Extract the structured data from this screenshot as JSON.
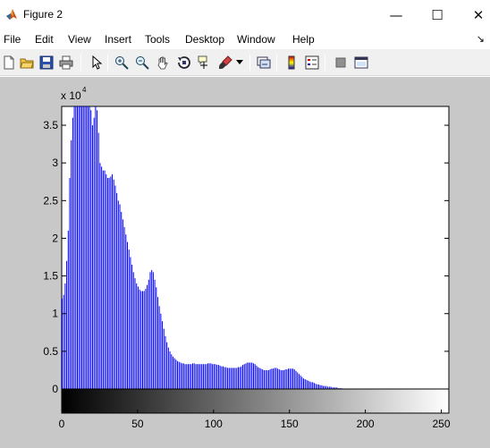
{
  "window": {
    "title": "Figure 2",
    "minimize_glyph": "—",
    "maximize_glyph": "☐",
    "close_glyph": "✕"
  },
  "menu": {
    "items": [
      "File",
      "Edit",
      "View",
      "Insert",
      "Tools",
      "Desktop",
      "Window",
      "Help"
    ],
    "overflow_glyph": "↘"
  },
  "toolbar": {
    "icons": [
      "new-figure-icon",
      "open-file-icon",
      "save-icon",
      "print-icon",
      "edit-plot-pointer-icon",
      "zoom-in-icon",
      "zoom-out-icon",
      "pan-hand-icon",
      "rotate-3d-icon",
      "data-cursor-icon",
      "brush-icon",
      "brush-dropdown-icon",
      "link-plot-icon",
      "insert-colorbar-icon",
      "insert-legend-icon",
      "hide-plot-tools-icon",
      "show-plot-tools-icon"
    ]
  },
  "colors": {
    "bar": "#0000ff",
    "figure_bg": "#c8c8c8",
    "axes_bg": "#ffffff"
  },
  "chart_data": {
    "type": "bar",
    "title": "",
    "xlabel": "",
    "ylabel": "",
    "exponent_label": "x 10",
    "exponent_power": "4",
    "xlim": [
      0,
      255
    ],
    "ylim": [
      0,
      3.75
    ],
    "xticks": [
      "0",
      "50",
      "100",
      "150",
      "200",
      "250"
    ],
    "yticks": [
      "0",
      "0.5",
      "1",
      "1.5",
      "2",
      "2.5",
      "3",
      "3.5"
    ],
    "grayscale_colorbar": "black-to-white",
    "bin_values": [
      1.2,
      1.25,
      1.4,
      1.7,
      2.1,
      2.8,
      3.3,
      3.6,
      3.75,
      3.75,
      3.75,
      3.75,
      3.75,
      3.75,
      3.75,
      3.75,
      3.75,
      3.75,
      3.75,
      3.7,
      3.5,
      3.6,
      3.75,
      3.7,
      3.4,
      3.0,
      2.95,
      2.9,
      2.9,
      2.85,
      2.8,
      2.8,
      2.82,
      2.85,
      2.78,
      2.7,
      2.6,
      2.5,
      2.45,
      2.35,
      2.25,
      2.15,
      2.05,
      1.95,
      1.85,
      1.75,
      1.65,
      1.55,
      1.47,
      1.4,
      1.36,
      1.32,
      1.3,
      1.3,
      1.3,
      1.33,
      1.38,
      1.45,
      1.55,
      1.58,
      1.55,
      1.45,
      1.35,
      1.22,
      1.1,
      1.0,
      0.9,
      0.8,
      0.7,
      0.62,
      0.55,
      0.5,
      0.46,
      0.43,
      0.41,
      0.39,
      0.37,
      0.36,
      0.35,
      0.34,
      0.34,
      0.33,
      0.33,
      0.33,
      0.33,
      0.33,
      0.34,
      0.34,
      0.33,
      0.33,
      0.33,
      0.33,
      0.33,
      0.33,
      0.33,
      0.33,
      0.34,
      0.34,
      0.34,
      0.33,
      0.33,
      0.33,
      0.32,
      0.32,
      0.31,
      0.3,
      0.3,
      0.29,
      0.29,
      0.28,
      0.28,
      0.28,
      0.28,
      0.28,
      0.28,
      0.28,
      0.29,
      0.29,
      0.3,
      0.32,
      0.33,
      0.34,
      0.35,
      0.35,
      0.35,
      0.35,
      0.34,
      0.33,
      0.31,
      0.29,
      0.28,
      0.27,
      0.26,
      0.25,
      0.25,
      0.25,
      0.25,
      0.26,
      0.27,
      0.27,
      0.28,
      0.28,
      0.27,
      0.26,
      0.25,
      0.25,
      0.25,
      0.26,
      0.26,
      0.27,
      0.27,
      0.27,
      0.27,
      0.26,
      0.24,
      0.22,
      0.2,
      0.18,
      0.16,
      0.14,
      0.13,
      0.12,
      0.11,
      0.1,
      0.09,
      0.09,
      0.08,
      0.07,
      0.06,
      0.06,
      0.05,
      0.05,
      0.04,
      0.04,
      0.04,
      0.03,
      0.03,
      0.03,
      0.02,
      0.02,
      0.02,
      0.02,
      0.01,
      0.01,
      0.01
    ]
  }
}
